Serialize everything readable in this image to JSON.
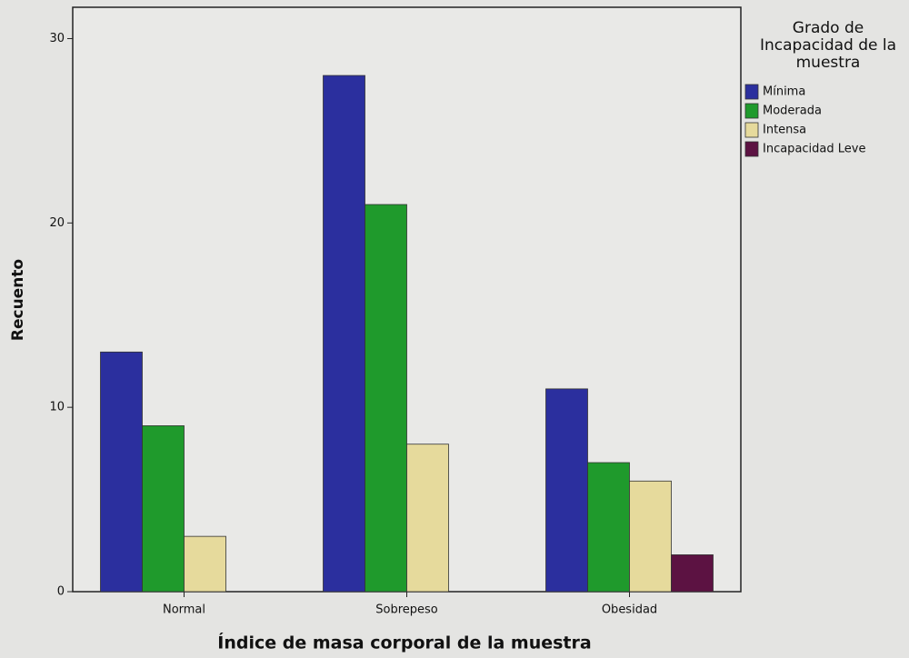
{
  "chart_data": {
    "type": "bar",
    "categories": [
      "Normal",
      "Sobrepeso",
      "Obesidad"
    ],
    "series": [
      {
        "name": "Mínima",
        "color": "#2b2f9e",
        "values": [
          13,
          28,
          11
        ]
      },
      {
        "name": "Moderada",
        "color": "#1f9a2c",
        "values": [
          9,
          21,
          7
        ]
      },
      {
        "name": "Intensa",
        "color": "#e6da9c",
        "values": [
          3,
          8,
          6
        ]
      },
      {
        "name": "Incapacidad Leve",
        "color": "#5c1242",
        "values": [
          null,
          null,
          2
        ]
      }
    ],
    "ylim": [
      0,
      31.7
    ],
    "yticks": [
      0,
      10,
      20,
      30
    ],
    "xlabel": "Índice de masa corporal de la muestra",
    "ylabel": "Recuento",
    "legend_title": "Grado de Incapacidad de la muestra",
    "legend": "right"
  }
}
